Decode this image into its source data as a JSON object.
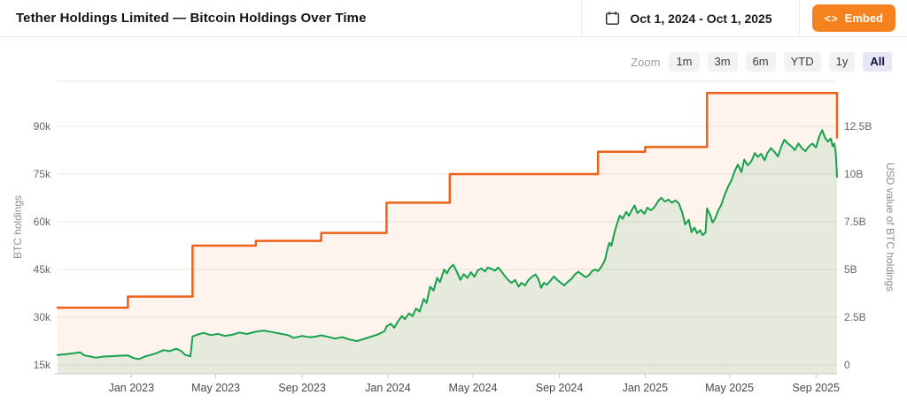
{
  "header": {
    "title": "Tether Holdings Limited — Bitcoin Holdings Over Time",
    "date_range": "Oct 1, 2024 - Oct 1, 2025",
    "embed_icon": "<>",
    "embed_label": "Embed"
  },
  "zoom_controls": {
    "label": "Zoom",
    "buttons": [
      {
        "label": "1m",
        "active": false
      },
      {
        "label": "3m",
        "active": false
      },
      {
        "label": "6m",
        "active": false
      },
      {
        "label": "YTD",
        "active": false
      },
      {
        "label": "1y",
        "active": false
      },
      {
        "label": "All",
        "active": true
      }
    ]
  },
  "colors": {
    "btc_line": "#ed6218",
    "usd_line": "#16a14b",
    "btc_fill": "rgba(238,100,26,0.08)",
    "usd_fill": "rgba(22,160,74,0.10)",
    "grid": "#e9e7e2",
    "axis_line": "#c9c9c9",
    "tick_text": "#666666",
    "xlabel_text": "#4a4a4a",
    "axis_title_text": "#8e8e8e",
    "embed_orange": "#f6821f"
  },
  "chart_data": {
    "type": "line",
    "title": "Tether Holdings Limited — Bitcoin Holdings Over Time",
    "x_range": [
      "2022-09-18",
      "2025-10-01"
    ],
    "x_ticks": [
      {
        "date": "2023-01-01",
        "label": "Jan 2023"
      },
      {
        "date": "2023-05-01",
        "label": "May 2023"
      },
      {
        "date": "2023-09-01",
        "label": "Sep 2023"
      },
      {
        "date": "2024-01-01",
        "label": "Jan 2024"
      },
      {
        "date": "2024-05-01",
        "label": "May 2024"
      },
      {
        "date": "2024-09-01",
        "label": "Sep 2024"
      },
      {
        "date": "2025-01-01",
        "label": "Jan 2025"
      },
      {
        "date": "2025-05-01",
        "label": "May 2025"
      },
      {
        "date": "2025-09-01",
        "label": "Sep 2025"
      }
    ],
    "left_axis": {
      "title": "BTC holdings",
      "ticks": [
        "15k",
        "30k",
        "45k",
        "60k",
        "75k",
        "90k"
      ],
      "min": 15000,
      "step": 15000
    },
    "right_axis": {
      "title": "USD value of BTC holdings",
      "ticks": [
        "0",
        "2.5B",
        "5B",
        "7.5B",
        "10B",
        "12.5B"
      ],
      "min": 0,
      "step": 2.5
    },
    "series": [
      {
        "name": "BTC holdings",
        "axis": "left",
        "type": "step",
        "color": "#ed6218",
        "fill": "rgba(238,100,26,0.08)",
        "points": [
          [
            "2022-09-18",
            33000
          ],
          [
            "2022-12-27",
            36500
          ],
          [
            "2023-03-29",
            52500
          ],
          [
            "2023-06-27",
            54000
          ],
          [
            "2023-09-28",
            56500
          ],
          [
            "2023-12-30",
            66000
          ],
          [
            "2024-03-29",
            75000
          ],
          [
            "2024-10-26",
            82000
          ],
          [
            "2025-01-01",
            83500
          ],
          [
            "2025-03-30",
            100500
          ],
          [
            "2025-10-01",
            86500
          ]
        ]
      },
      {
        "name": "USD value of BTC holdings",
        "axis": "right",
        "type": "line",
        "color": "#16a14b",
        "fill": "rgba(22,160,74,0.10)",
        "points": [
          [
            "2022-09-18",
            0.52
          ],
          [
            "2022-09-26",
            0.55
          ],
          [
            "2022-10-04",
            0.58
          ],
          [
            "2022-10-12",
            0.62
          ],
          [
            "2022-10-20",
            0.66
          ],
          [
            "2022-10-26",
            0.5
          ],
          [
            "2022-11-04",
            0.44
          ],
          [
            "2022-11-12",
            0.38
          ],
          [
            "2022-11-22",
            0.44
          ],
          [
            "2022-12-04",
            0.46
          ],
          [
            "2022-12-14",
            0.48
          ],
          [
            "2022-12-27",
            0.5
          ],
          [
            "2023-01-04",
            0.36
          ],
          [
            "2023-01-12",
            0.3
          ],
          [
            "2023-01-20",
            0.44
          ],
          [
            "2023-01-28",
            0.52
          ],
          [
            "2023-02-06",
            0.62
          ],
          [
            "2023-02-16",
            0.78
          ],
          [
            "2023-02-24",
            0.72
          ],
          [
            "2023-03-06",
            0.85
          ],
          [
            "2023-03-13",
            0.72
          ],
          [
            "2023-03-19",
            0.52
          ],
          [
            "2023-03-26",
            0.46
          ],
          [
            "2023-03-29",
            1.49
          ],
          [
            "2023-04-06",
            1.6
          ],
          [
            "2023-04-14",
            1.68
          ],
          [
            "2023-04-24",
            1.56
          ],
          [
            "2023-05-04",
            1.63
          ],
          [
            "2023-05-14",
            1.52
          ],
          [
            "2023-05-24",
            1.58
          ],
          [
            "2023-06-04",
            1.7
          ],
          [
            "2023-06-14",
            1.62
          ],
          [
            "2023-06-27",
            1.74
          ],
          [
            "2023-07-08",
            1.8
          ],
          [
            "2023-07-20",
            1.72
          ],
          [
            "2023-08-01",
            1.64
          ],
          [
            "2023-08-12",
            1.56
          ],
          [
            "2023-08-20",
            1.42
          ],
          [
            "2023-09-01",
            1.52
          ],
          [
            "2023-09-12",
            1.45
          ],
          [
            "2023-09-22",
            1.5
          ],
          [
            "2023-09-28",
            1.55
          ],
          [
            "2023-10-08",
            1.47
          ],
          [
            "2023-10-18",
            1.38
          ],
          [
            "2023-10-28",
            1.46
          ],
          [
            "2023-11-08",
            1.33
          ],
          [
            "2023-11-18",
            1.25
          ],
          [
            "2023-11-28",
            1.36
          ],
          [
            "2023-12-08",
            1.48
          ],
          [
            "2023-12-18",
            1.6
          ],
          [
            "2023-12-27",
            1.76
          ],
          [
            "2023-12-30",
            2.02
          ],
          [
            "2024-01-05",
            2.16
          ],
          [
            "2024-01-10",
            1.95
          ],
          [
            "2024-01-16",
            2.32
          ],
          [
            "2024-01-21",
            2.56
          ],
          [
            "2024-01-25",
            2.4
          ],
          [
            "2024-01-31",
            2.7
          ],
          [
            "2024-02-05",
            2.56
          ],
          [
            "2024-02-10",
            2.96
          ],
          [
            "2024-02-15",
            2.8
          ],
          [
            "2024-02-21",
            3.46
          ],
          [
            "2024-02-25",
            3.25
          ],
          [
            "2024-03-01",
            4.1
          ],
          [
            "2024-03-06",
            3.9
          ],
          [
            "2024-03-11",
            4.56
          ],
          [
            "2024-03-15",
            4.34
          ],
          [
            "2024-03-21",
            5.0
          ],
          [
            "2024-03-25",
            4.8
          ],
          [
            "2024-03-29",
            5.08
          ],
          [
            "2024-04-03",
            5.25
          ],
          [
            "2024-04-08",
            4.9
          ],
          [
            "2024-04-13",
            4.46
          ],
          [
            "2024-04-18",
            4.76
          ],
          [
            "2024-04-23",
            4.56
          ],
          [
            "2024-04-28",
            4.86
          ],
          [
            "2024-05-03",
            4.62
          ],
          [
            "2024-05-08",
            4.96
          ],
          [
            "2024-05-13",
            5.06
          ],
          [
            "2024-05-18",
            4.9
          ],
          [
            "2024-05-22",
            5.1
          ],
          [
            "2024-05-27",
            5.04
          ],
          [
            "2024-06-01",
            4.94
          ],
          [
            "2024-06-06",
            5.1
          ],
          [
            "2024-06-11",
            4.88
          ],
          [
            "2024-06-16",
            4.62
          ],
          [
            "2024-06-21",
            4.42
          ],
          [
            "2024-06-25",
            4.3
          ],
          [
            "2024-06-30",
            4.46
          ],
          [
            "2024-07-05",
            4.1
          ],
          [
            "2024-07-09",
            4.3
          ],
          [
            "2024-07-14",
            4.16
          ],
          [
            "2024-07-19",
            4.46
          ],
          [
            "2024-07-24",
            4.62
          ],
          [
            "2024-07-29",
            4.74
          ],
          [
            "2024-08-02",
            4.5
          ],
          [
            "2024-08-06",
            4.04
          ],
          [
            "2024-08-10",
            4.3
          ],
          [
            "2024-08-14",
            4.2
          ],
          [
            "2024-08-19",
            4.4
          ],
          [
            "2024-08-24",
            4.64
          ],
          [
            "2024-08-29",
            4.46
          ],
          [
            "2024-09-03",
            4.3
          ],
          [
            "2024-09-08",
            4.16
          ],
          [
            "2024-09-13",
            4.36
          ],
          [
            "2024-09-18",
            4.5
          ],
          [
            "2024-09-23",
            4.74
          ],
          [
            "2024-09-28",
            4.88
          ],
          [
            "2024-10-03",
            4.74
          ],
          [
            "2024-10-08",
            4.6
          ],
          [
            "2024-10-13",
            4.7
          ],
          [
            "2024-10-18",
            4.94
          ],
          [
            "2024-10-22",
            5.0
          ],
          [
            "2024-10-26",
            4.92
          ],
          [
            "2024-10-31",
            5.16
          ],
          [
            "2024-11-05",
            5.5
          ],
          [
            "2024-11-08",
            6.02
          ],
          [
            "2024-11-11",
            6.4
          ],
          [
            "2024-11-14",
            6.24
          ],
          [
            "2024-11-18",
            6.9
          ],
          [
            "2024-11-22",
            7.4
          ],
          [
            "2024-11-26",
            7.82
          ],
          [
            "2024-11-30",
            7.66
          ],
          [
            "2024-12-05",
            8.02
          ],
          [
            "2024-12-09",
            7.82
          ],
          [
            "2024-12-13",
            8.12
          ],
          [
            "2024-12-17",
            8.36
          ],
          [
            "2024-12-21",
            7.96
          ],
          [
            "2024-12-26",
            8.12
          ],
          [
            "2024-12-31",
            7.92
          ],
          [
            "2025-01-04",
            8.24
          ],
          [
            "2025-01-09",
            8.1
          ],
          [
            "2025-01-14",
            8.26
          ],
          [
            "2025-01-20",
            8.6
          ],
          [
            "2025-01-24",
            8.76
          ],
          [
            "2025-01-29",
            8.56
          ],
          [
            "2025-02-03",
            8.66
          ],
          [
            "2025-02-08",
            8.5
          ],
          [
            "2025-02-13",
            8.62
          ],
          [
            "2025-02-18",
            8.46
          ],
          [
            "2025-02-23",
            7.96
          ],
          [
            "2025-02-27",
            7.36
          ],
          [
            "2025-03-04",
            7.6
          ],
          [
            "2025-03-08",
            6.96
          ],
          [
            "2025-03-12",
            7.2
          ],
          [
            "2025-03-16",
            6.9
          ],
          [
            "2025-03-20",
            7.06
          ],
          [
            "2025-03-24",
            6.8
          ],
          [
            "2025-03-28",
            6.94
          ],
          [
            "2025-03-30",
            8.2
          ],
          [
            "2025-04-03",
            7.9
          ],
          [
            "2025-04-07",
            7.46
          ],
          [
            "2025-04-11",
            7.7
          ],
          [
            "2025-04-15",
            8.1
          ],
          [
            "2025-04-19",
            8.36
          ],
          [
            "2025-04-24",
            8.9
          ],
          [
            "2025-04-29",
            9.34
          ],
          [
            "2025-05-04",
            9.7
          ],
          [
            "2025-05-09",
            10.2
          ],
          [
            "2025-05-13",
            10.5
          ],
          [
            "2025-05-18",
            10.1
          ],
          [
            "2025-05-22",
            10.76
          ],
          [
            "2025-05-27",
            10.46
          ],
          [
            "2025-06-01",
            10.66
          ],
          [
            "2025-06-06",
            11.1
          ],
          [
            "2025-06-10",
            10.9
          ],
          [
            "2025-06-15",
            11.06
          ],
          [
            "2025-06-20",
            10.72
          ],
          [
            "2025-06-24",
            11.1
          ],
          [
            "2025-06-29",
            11.36
          ],
          [
            "2025-07-04",
            11.16
          ],
          [
            "2025-07-09",
            10.92
          ],
          [
            "2025-07-14",
            11.46
          ],
          [
            "2025-07-18",
            11.8
          ],
          [
            "2025-07-23",
            11.6
          ],
          [
            "2025-07-28",
            11.46
          ],
          [
            "2025-08-02",
            11.26
          ],
          [
            "2025-08-07",
            11.6
          ],
          [
            "2025-08-12",
            11.36
          ],
          [
            "2025-08-17",
            11.2
          ],
          [
            "2025-08-22",
            11.46
          ],
          [
            "2025-08-27",
            11.6
          ],
          [
            "2025-09-01",
            11.4
          ],
          [
            "2025-09-06",
            12.0
          ],
          [
            "2025-09-10",
            12.3
          ],
          [
            "2025-09-14",
            11.9
          ],
          [
            "2025-09-18",
            11.7
          ],
          [
            "2025-09-22",
            11.86
          ],
          [
            "2025-09-25",
            11.46
          ],
          [
            "2025-09-27",
            11.6
          ],
          [
            "2025-09-29",
            11.2
          ],
          [
            "2025-09-30",
            10.6
          ],
          [
            "2025-10-01",
            9.85
          ]
        ]
      }
    ]
  }
}
